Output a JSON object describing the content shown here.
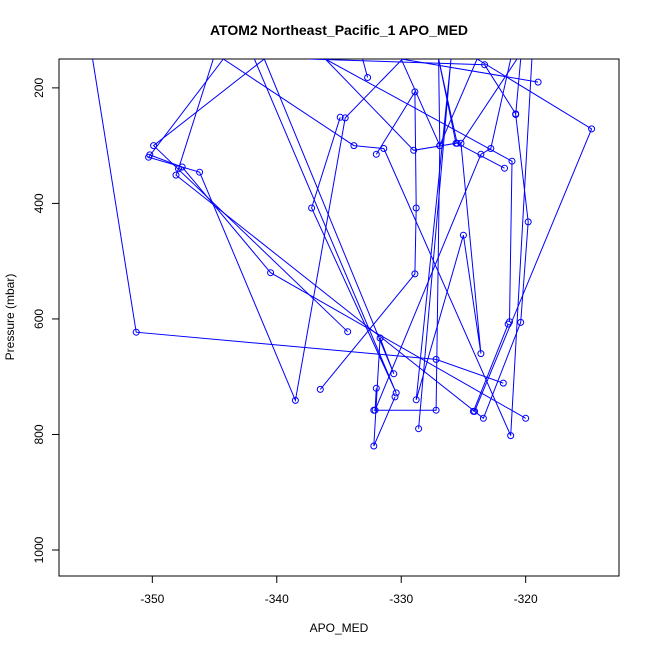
{
  "chart_data": {
    "type": "line",
    "title": "ATOM2 Northeast_Pacific_1 APO_MED",
    "xlabel": "APO_MED",
    "ylabel": "Pressure (mbar)",
    "xlim": [
      -357.5,
      -312.5
    ],
    "ylim": [
      1045,
      150
    ],
    "y_reversed": true,
    "xticks": [
      -350,
      -340,
      -330,
      -320
    ],
    "xtick_labels": [
      "-350",
      "-340",
      "-330",
      "-320"
    ],
    "yticks": [
      200,
      400,
      600,
      800,
      1000
    ],
    "ytick_labels": [
      "200",
      "400",
      "600",
      "800",
      "1000"
    ],
    "grid": false,
    "legend": "none",
    "series_color": "#0000ff",
    "marker": "open-circle",
    "series": [
      {
        "x": [
          -354.8,
          -351.3,
          -327.2,
          -321.8
        ],
        "y": [
          150,
          623,
          670,
          711
        ]
      },
      {
        "x": [
          -333.1,
          -332.7
        ],
        "y": [
          150,
          182
        ]
      },
      {
        "x": [
          -329.9,
          -334.5,
          -338.5,
          -346.2,
          -350.3,
          -344.3,
          -333.8,
          -331.4,
          -321.2,
          -319.5
        ],
        "y": [
          150,
          252,
          741,
          346,
          320,
          150,
          300,
          305,
          802,
          150
        ]
      },
      {
        "x": [
          -321.2,
          -322.8,
          -323.6,
          -332.1,
          -332.0
        ],
        "y": [
          150,
          305,
          315,
          758,
          720
        ]
      },
      {
        "x": [
          -350.2,
          -347.6,
          -340.5,
          -320.0
        ],
        "y": [
          316,
          337,
          520,
          772
        ]
      },
      {
        "x": [
          -345.1,
          -347.9,
          -348.1,
          -323.4,
          -320.4,
          -319.8,
          -320.8,
          -320.4
        ],
        "y": [
          150,
          340,
          351,
          772,
          606,
          432,
          246,
          150
        ]
      },
      {
        "x": [
          -337.5,
          -323.3,
          -320.8
        ],
        "y": [
          150,
          160,
          245
        ]
      },
      {
        "x": [
          -334.3,
          -349.9,
          -341.0,
          -330.6,
          -331.7,
          -332.2,
          -330.5
        ],
        "y": [
          622,
          300,
          150,
          695,
          633,
          820,
          735
        ]
      },
      {
        "x": [
          -341.8,
          -330.4,
          -337.2,
          -334.9
        ],
        "y": [
          150,
          728,
          408,
          251
        ]
      },
      {
        "x": [
          -332.0,
          -328.9,
          -328.8,
          -328.9,
          -336.5
        ],
        "y": [
          315,
          207,
          408,
          522,
          722
        ]
      },
      {
        "x": [
          -332.2,
          -327.2,
          -326.9,
          -327.0,
          -325.5,
          -321.7
        ],
        "y": [
          758,
          758,
          300,
          150,
          296,
          339
        ]
      },
      {
        "x": [
          -327.0,
          -325.6,
          -329.0,
          -336.1,
          -321.1,
          -321.3
        ],
        "y": [
          150,
          296,
          308,
          150,
          327,
          605
        ]
      },
      {
        "x": [
          -328.6,
          -326.0,
          -328.8,
          -325.0,
          -323.6,
          -325.2,
          -320.7
        ],
        "y": [
          790,
          150,
          740,
          455,
          660,
          296,
          150
        ]
      },
      {
        "x": [
          -319.0,
          -330.0,
          -326.9,
          -323.9,
          -314.7,
          -324.1
        ],
        "y": [
          190,
          150,
          300,
          150,
          271,
          760
        ]
      },
      {
        "x": [
          -324.2,
          -321.4
        ],
        "y": [
          760,
          609
        ]
      }
    ]
  }
}
